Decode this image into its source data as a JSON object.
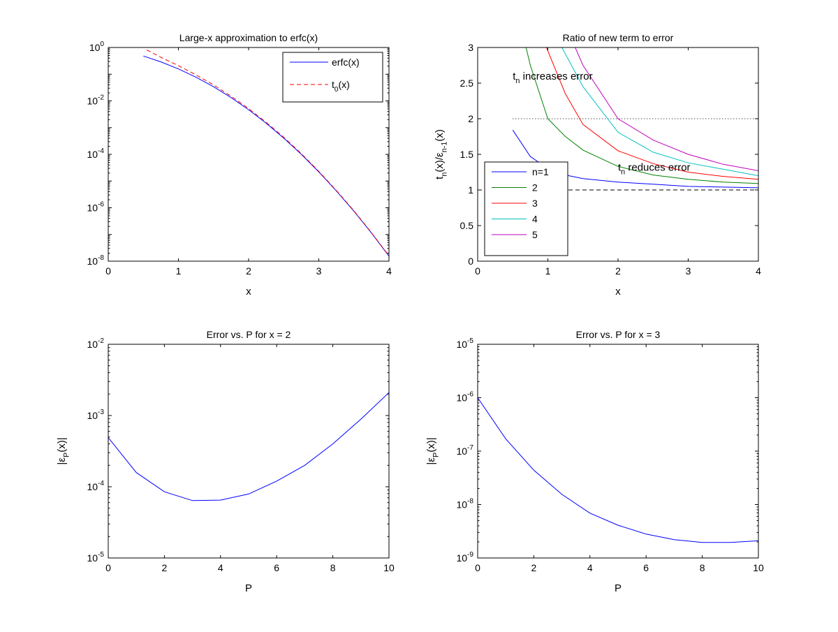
{
  "chart_data": [
    {
      "type": "line",
      "title": "Large-x approximation to erfc(x)",
      "xlabel": "x",
      "ylabel": "",
      "xlim": [
        0,
        4
      ],
      "ylim": [
        1e-08,
        1
      ],
      "yscale": "log",
      "xticks": [
        0,
        1,
        2,
        3,
        4
      ],
      "xtick_labels": [
        "0",
        "1",
        "2",
        "3",
        "4"
      ],
      "yticks": [
        1e-08,
        1e-06,
        0.0001,
        0.01,
        1
      ],
      "ytick_labels": [
        "10^{-8}",
        "10^{-6}",
        "10^{-4}",
        "10^{-2}",
        "10^{0}"
      ],
      "legend": "top-right",
      "grid": false,
      "series": [
        {
          "name": "erfc(x)",
          "color": "#0000ff",
          "dash": "solid",
          "x": [
            0.5,
            0.75,
            1,
            1.25,
            1.5,
            1.75,
            2,
            2.25,
            2.5,
            2.75,
            3,
            3.25,
            3.5,
            3.75,
            4
          ],
          "y": [
            0.4795,
            0.2888,
            0.1573,
            0.0771,
            0.0339,
            0.01333,
            0.00468,
            0.001463,
            0.000407,
            0.0001008,
            2.21e-05,
            4.3e-06,
            7.43e-07,
            1.14e-07,
            1.54e-08
          ]
        },
        {
          "name": "t_0(x)",
          "color": "#ff0000",
          "dash": "dashed",
          "x": [
            0.55,
            0.75,
            1,
            1.25,
            1.5,
            1.75,
            2,
            2.25,
            2.5,
            2.75,
            3,
            3.25,
            3.5,
            3.75,
            4
          ],
          "y": [
            0.81,
            0.4286,
            0.2076,
            0.0946,
            0.0396,
            0.01508,
            0.00517,
            0.001587,
            0.000436,
            0.0001066,
            2.32e-05,
            4.48e-06,
            7.72e-07,
            1.175e-07,
            1.59e-08
          ]
        }
      ]
    },
    {
      "type": "line",
      "title": "Ratio of new term to error",
      "xlabel": "x",
      "ylabel": "t_n(x)/ε_{n-1}(x)",
      "xlim": [
        0,
        4
      ],
      "ylim": [
        0,
        3
      ],
      "yscale": "linear",
      "xticks": [
        0,
        1,
        2,
        3,
        4
      ],
      "xtick_labels": [
        "0",
        "1",
        "2",
        "3",
        "4"
      ],
      "yticks": [
        0,
        0.5,
        1,
        1.5,
        2,
        2.5,
        3
      ],
      "ytick_labels": [
        "0",
        "0.5",
        "1",
        "1.5",
        "2",
        "2.5",
        "3"
      ],
      "legend": "bottom-left",
      "grid": false,
      "series": [
        {
          "name": "n=1",
          "color": "#0000ff",
          "dash": "solid",
          "x": [
            0.5,
            0.75,
            1,
            1.25,
            1.5,
            2,
            2.5,
            3,
            3.5,
            4
          ],
          "y": [
            1.84,
            1.47,
            1.3,
            1.21,
            1.16,
            1.11,
            1.08,
            1.05,
            1.04,
            1.03
          ]
        },
        {
          "name": "2",
          "color": "#008000",
          "dash": "solid",
          "x": [
            0.69,
            0.75,
            1,
            1.25,
            1.5,
            2,
            2.5,
            3,
            3.5,
            4
          ],
          "y": [
            3.0,
            2.75,
            2.0,
            1.75,
            1.56,
            1.33,
            1.21,
            1.15,
            1.11,
            1.09
          ]
        },
        {
          "name": "3",
          "color": "#ff0000",
          "dash": "solid",
          "x": [
            0.98,
            1.25,
            1.5,
            2,
            2.5,
            3,
            3.5,
            4
          ],
          "y": [
            3.0,
            2.35,
            1.92,
            1.55,
            1.37,
            1.25,
            1.19,
            1.15
          ]
        },
        {
          "name": "4",
          "color": "#00bfbf",
          "dash": "solid",
          "x": [
            1.2,
            1.5,
            2,
            2.5,
            3,
            3.5,
            4
          ],
          "y": [
            3.0,
            2.45,
            1.81,
            1.53,
            1.38,
            1.29,
            1.2
          ]
        },
        {
          "name": "5",
          "color": "#bf00bf",
          "dash": "solid",
          "x": [
            1.39,
            1.5,
            2,
            2.5,
            3,
            3.5,
            4
          ],
          "y": [
            3.0,
            2.75,
            2.0,
            1.7,
            1.5,
            1.36,
            1.27
          ]
        }
      ],
      "reference_lines": [
        {
          "y": 2,
          "x": [
            0.5,
            4
          ],
          "style": "dotted",
          "color": "#000000"
        },
        {
          "y": 1,
          "x": [
            0,
            4
          ],
          "style": "dashed",
          "color": "#000000"
        }
      ],
      "annotations": [
        {
          "text": "t_n increases error",
          "x": 0.5,
          "y": 2.55
        },
        {
          "text": "t_n reduces error",
          "x": 2.0,
          "y": 1.27
        }
      ]
    },
    {
      "type": "line",
      "title": "Error vs. P for x = 2",
      "xlabel": "P",
      "ylabel": "|ε_P(x)|",
      "xlim": [
        0,
        10
      ],
      "ylim": [
        1e-05,
        0.01
      ],
      "yscale": "log",
      "xticks": [
        0,
        2,
        4,
        6,
        8,
        10
      ],
      "xtick_labels": [
        "0",
        "2",
        "4",
        "6",
        "8",
        "10"
      ],
      "yticks": [
        1e-05,
        0.0001,
        0.001,
        0.01
      ],
      "ytick_labels": [
        "10^{-5}",
        "10^{-4}",
        "10^{-3}",
        "10^{-2}"
      ],
      "grid": false,
      "series": [
        {
          "color": "#0000ff",
          "dash": "solid",
          "x": [
            0,
            1,
            2,
            3,
            4,
            5,
            6,
            7,
            8,
            9,
            10
          ],
          "y": [
            0.00049,
            0.000158,
            8.5e-05,
            6.4e-05,
            6.5e-05,
            7.9e-05,
            0.00012,
            0.0002,
            0.0004,
            0.00089,
            0.0021
          ]
        }
      ]
    },
    {
      "type": "line",
      "title": "Error vs. P for x = 3",
      "xlabel": "P",
      "ylabel": "|ε_P(x)|",
      "xlim": [
        0,
        10
      ],
      "ylim": [
        1e-09,
        1e-05
      ],
      "yscale": "log",
      "xticks": [
        0,
        2,
        4,
        6,
        8,
        10
      ],
      "xtick_labels": [
        "0",
        "2",
        "4",
        "6",
        "8",
        "10"
      ],
      "yticks": [
        1e-09,
        1e-08,
        1e-07,
        1e-06,
        1e-05
      ],
      "ytick_labels": [
        "10^{-9}",
        "10^{-8}",
        "10^{-7}",
        "10^{-6}",
        "10^{-5}"
      ],
      "grid": false,
      "series": [
        {
          "color": "#0000ff",
          "dash": "solid",
          "x": [
            0,
            1,
            2,
            3,
            4,
            5,
            6,
            7,
            8,
            9,
            10
          ],
          "y": [
            1e-06,
            1.7e-07,
            4.4e-08,
            1.55e-08,
            6.9e-09,
            4.1e-09,
            2.8e-09,
            2.2e-09,
            1.95e-09,
            1.95e-09,
            2.1e-09
          ]
        }
      ]
    }
  ]
}
